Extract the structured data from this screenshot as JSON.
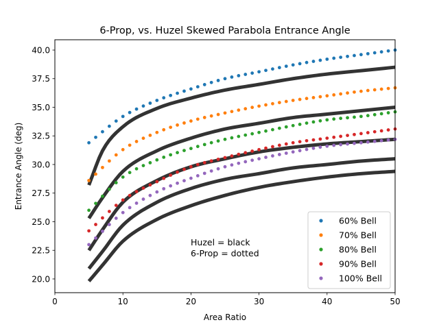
{
  "chart_data": {
    "type": "scatter",
    "title": "6-Prop, vs. Huzel Skewed Parabola Entrance Angle",
    "xlabel": "Area Ratio",
    "ylabel": "Entrance Angle (deg)",
    "xlim": [
      0,
      50
    ],
    "ylim": [
      18.8,
      40.9
    ],
    "xticks": [
      0,
      10,
      20,
      30,
      40,
      50
    ],
    "yticks": [
      20.0,
      22.5,
      25.0,
      27.5,
      30.0,
      32.5,
      35.0,
      37.5,
      40.0
    ],
    "xtick_labels": [
      "0",
      "10",
      "20",
      "30",
      "40",
      "50"
    ],
    "ytick_labels": [
      "20.0",
      "22.5",
      "25.0",
      "27.5",
      "30.0",
      "32.5",
      "35.0",
      "37.5",
      "40.0"
    ],
    "grid": false,
    "legend": "lower-right",
    "annotation": [
      "Huzel = black",
      "6-Prop = dotted"
    ],
    "dotted_series": [
      {
        "name": "60% Bell",
        "color": "#1f77b4",
        "points": [
          [
            5,
            31.9
          ],
          [
            10,
            34.2
          ],
          [
            15,
            35.6
          ],
          [
            20,
            36.6
          ],
          [
            25,
            37.5
          ],
          [
            30,
            38.1
          ],
          [
            35,
            38.7
          ],
          [
            40,
            39.2
          ],
          [
            45,
            39.6
          ],
          [
            50,
            40.0
          ]
        ]
      },
      {
        "name": "70% Bell",
        "color": "#ff7f0e",
        "points": [
          [
            5,
            28.6
          ],
          [
            10,
            31.3
          ],
          [
            15,
            32.8
          ],
          [
            20,
            33.8
          ],
          [
            25,
            34.5
          ],
          [
            30,
            35.1
          ],
          [
            35,
            35.6
          ],
          [
            40,
            36.0
          ],
          [
            45,
            36.4
          ],
          [
            50,
            36.7
          ]
        ]
      },
      {
        "name": "80% Bell",
        "color": "#2ca02c",
        "points": [
          [
            5,
            26.0
          ],
          [
            10,
            28.9
          ],
          [
            15,
            30.4
          ],
          [
            20,
            31.4
          ],
          [
            25,
            32.2
          ],
          [
            30,
            32.8
          ],
          [
            35,
            33.4
          ],
          [
            40,
            33.9
          ],
          [
            45,
            34.2
          ],
          [
            50,
            34.6
          ]
        ]
      },
      {
        "name": "90% Bell",
        "color": "#d62728",
        "points": [
          [
            5,
            24.2
          ],
          [
            10,
            26.9
          ],
          [
            15,
            28.5
          ],
          [
            20,
            29.8
          ],
          [
            25,
            30.6
          ],
          [
            30,
            31.3
          ],
          [
            35,
            31.9
          ],
          [
            40,
            32.3
          ],
          [
            45,
            32.7
          ],
          [
            50,
            33.1
          ]
        ]
      },
      {
        "name": "100% Bell",
        "color": "#9467bd",
        "points": [
          [
            5,
            23.0
          ],
          [
            10,
            25.8
          ],
          [
            15,
            27.6
          ],
          [
            20,
            28.8
          ],
          [
            25,
            29.8
          ],
          [
            30,
            30.5
          ],
          [
            35,
            31.1
          ],
          [
            40,
            31.6
          ],
          [
            45,
            31.9
          ],
          [
            50,
            32.2
          ]
        ]
      }
    ],
    "huzel_series": [
      {
        "color": "#333333",
        "points": [
          [
            5,
            28.2
          ],
          [
            7,
            31.2
          ],
          [
            10,
            33.3
          ],
          [
            15,
            34.9
          ],
          [
            20,
            35.8
          ],
          [
            25,
            36.5
          ],
          [
            30,
            37.0
          ],
          [
            35,
            37.5
          ],
          [
            40,
            37.9
          ],
          [
            45,
            38.2
          ],
          [
            50,
            38.5
          ]
        ]
      },
      {
        "color": "#333333",
        "points": [
          [
            5,
            25.3
          ],
          [
            7,
            27.1
          ],
          [
            10,
            29.4
          ],
          [
            15,
            31.2
          ],
          [
            20,
            32.3
          ],
          [
            25,
            33.1
          ],
          [
            30,
            33.6
          ],
          [
            35,
            34.1
          ],
          [
            40,
            34.4
          ],
          [
            45,
            34.7
          ],
          [
            50,
            35.0
          ]
        ]
      },
      {
        "color": "#333333",
        "points": [
          [
            5,
            22.5
          ],
          [
            7,
            24.3
          ],
          [
            10,
            26.7
          ],
          [
            15,
            28.6
          ],
          [
            20,
            29.8
          ],
          [
            25,
            30.5
          ],
          [
            30,
            31.1
          ],
          [
            35,
            31.5
          ],
          [
            40,
            31.8
          ],
          [
            45,
            32.0
          ],
          [
            50,
            32.2
          ]
        ]
      },
      {
        "color": "#333333",
        "points": [
          [
            5,
            20.9
          ],
          [
            7,
            22.4
          ],
          [
            10,
            24.7
          ],
          [
            15,
            26.7
          ],
          [
            20,
            27.9
          ],
          [
            25,
            28.7
          ],
          [
            30,
            29.2
          ],
          [
            35,
            29.7
          ],
          [
            40,
            30.0
          ],
          [
            45,
            30.3
          ],
          [
            50,
            30.5
          ]
        ]
      },
      {
        "color": "#333333",
        "points": [
          [
            5,
            19.8
          ],
          [
            7,
            21.2
          ],
          [
            10,
            23.3
          ],
          [
            15,
            25.2
          ],
          [
            20,
            26.4
          ],
          [
            25,
            27.3
          ],
          [
            30,
            28.0
          ],
          [
            35,
            28.5
          ],
          [
            40,
            28.9
          ],
          [
            45,
            29.2
          ],
          [
            50,
            29.4
          ]
        ]
      }
    ]
  }
}
